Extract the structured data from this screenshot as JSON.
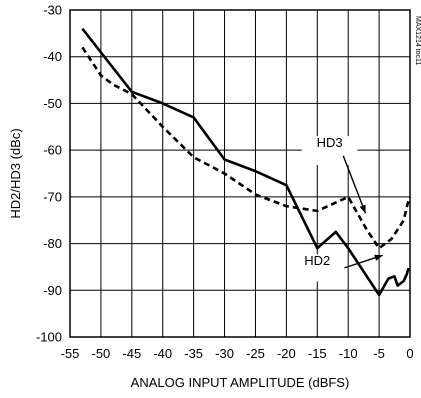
{
  "chart_data": {
    "type": "line",
    "xlabel": "ANALOG INPUT AMPLITUDE (dBFS)",
    "ylabel": "HD2/HD3 (dBc)",
    "xlim": [
      -55,
      0
    ],
    "ylim": [
      -100,
      -30
    ],
    "xticks": [
      -55,
      -50,
      -45,
      -40,
      -35,
      -30,
      -25,
      -20,
      -15,
      -10,
      -5,
      0
    ],
    "yticks": [
      -30,
      -40,
      -50,
      -60,
      -70,
      -80,
      -90,
      -100
    ],
    "grid": true,
    "figure_code": "MAX1214 toc11",
    "series": [
      {
        "name": "HD2",
        "style": "solid",
        "points": [
          [
            -53,
            -34
          ],
          [
            -45,
            -47.5
          ],
          [
            -40,
            -50
          ],
          [
            -35,
            -53
          ],
          [
            -30,
            -62
          ],
          [
            -25,
            -64.5
          ],
          [
            -20,
            -67.5
          ],
          [
            -15,
            -81
          ],
          [
            -12,
            -77.5
          ],
          [
            -10,
            -81
          ],
          [
            -5,
            -91
          ],
          [
            -3.5,
            -87.5
          ],
          [
            -2.5,
            -87
          ],
          [
            -2,
            -89
          ],
          [
            -1,
            -88
          ],
          [
            -0.5,
            -86.5
          ],
          [
            -0.3,
            -85.5
          ],
          [
            0,
            -85.5
          ]
        ]
      },
      {
        "name": "HD3",
        "style": "dashed",
        "points": [
          [
            -53,
            -38
          ],
          [
            -50,
            -44
          ],
          [
            -48,
            -46
          ],
          [
            -45,
            -48
          ],
          [
            -40,
            -55
          ],
          [
            -35,
            -61.5
          ],
          [
            -30,
            -65
          ],
          [
            -25,
            -69.5
          ],
          [
            -20,
            -72
          ],
          [
            -15,
            -73
          ],
          [
            -10,
            -70
          ],
          [
            -7,
            -77
          ],
          [
            -5,
            -81
          ],
          [
            -3,
            -79
          ],
          [
            -1,
            -75
          ],
          [
            -0.5,
            -72
          ],
          [
            0,
            -70
          ]
        ]
      }
    ],
    "annotations": [
      {
        "text": "HD3",
        "series": "HD3"
      },
      {
        "text": "HD2",
        "series": "HD2"
      }
    ]
  }
}
